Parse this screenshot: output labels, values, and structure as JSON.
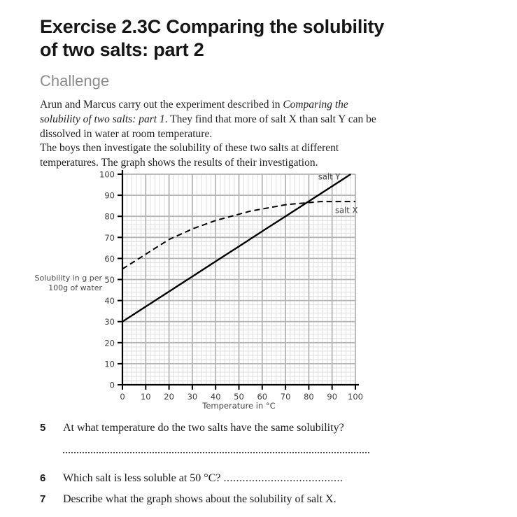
{
  "page": {
    "title_line1": "Exercise 2.3C Comparing the solubility",
    "title_line2": "of two salts: part 2",
    "section_heading": "Challenge",
    "para1_a": "Arun and Marcus carry out the experiment described in ",
    "para1_italic": "Comparing the solubility of two salts: part 1",
    "para1_b": ". They find that more of salt X than salt Y can be dissolved in water at room temperature.",
    "para2": "The boys then investigate the solubility of these two salts at different temperatures. The graph shows the results of their investigation."
  },
  "chart_data": {
    "type": "line",
    "title": "",
    "xlabel": "Temperature in °C",
    "ylabel_lines": [
      "Solubility in g per",
      "100g of water"
    ],
    "xlim": [
      0,
      100
    ],
    "ylim": [
      0,
      100
    ],
    "x_ticks": [
      0,
      10,
      20,
      30,
      40,
      50,
      60,
      70,
      80,
      90,
      100
    ],
    "y_ticks": [
      0,
      10,
      20,
      30,
      40,
      50,
      60,
      70,
      80,
      90,
      100
    ],
    "grid": {
      "major_step": 10,
      "minor_step": 2,
      "minor_horizontal_max": 80
    },
    "series": [
      {
        "name": "salt Y",
        "line_style": "solid",
        "x": [
          0,
          10,
          20,
          30,
          40,
          50,
          60,
          70,
          80,
          90,
          98
        ],
        "values": [
          30,
          37.1,
          44.3,
          51.4,
          58.6,
          65.7,
          72.9,
          80,
          87.1,
          94.3,
          100
        ]
      },
      {
        "name": "salt X",
        "line_style": "dashed",
        "x": [
          0,
          5,
          10,
          15,
          20,
          25,
          30,
          35,
          40,
          45,
          50,
          55,
          60,
          65,
          70,
          75,
          80,
          85,
          90,
          95,
          100
        ],
        "values": [
          55,
          58.5,
          62,
          65.5,
          69,
          71.5,
          74,
          76,
          78,
          79.5,
          81,
          82.5,
          83.5,
          84.5,
          85.5,
          86,
          86.5,
          87,
          87,
          87,
          87
        ]
      }
    ],
    "series_labels": [
      {
        "text": "salt Y",
        "x": 93.5,
        "y": 97.5,
        "anchor": "end"
      },
      {
        "text": "salt X",
        "x": 101,
        "y": 81.5,
        "anchor": "end"
      }
    ],
    "colors": {
      "curve": "#000000",
      "axis": "#000000",
      "grid_major": "#b5b5b5",
      "grid_minor": "#dedede",
      "tick_text": "#3c3c3c",
      "axis_title_text": "#4a4a4a"
    }
  },
  "questions": {
    "q5": {
      "number": "5",
      "text": "At what temperature do the two salts have the same solubility?"
    },
    "q6": {
      "number": "6",
      "text": "Which salt is less soluble at 50 °C?",
      "dots": "......................................"
    },
    "q7": {
      "number": "7",
      "text": "Describe what the graph shows about the solubility of salt X."
    }
  }
}
